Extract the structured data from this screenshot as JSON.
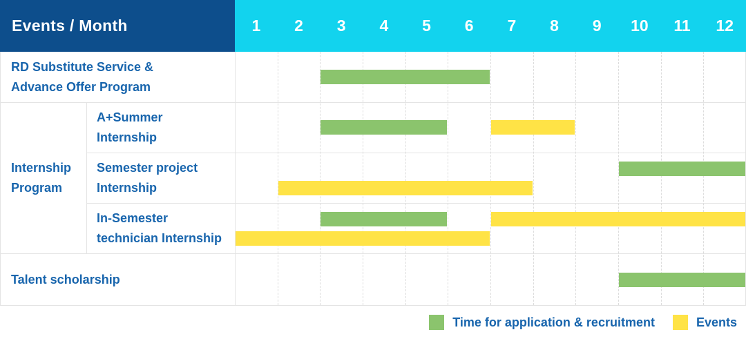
{
  "header": {
    "corner_label": "Events / Month",
    "months": [
      "1",
      "2",
      "3",
      "4",
      "5",
      "6",
      "7",
      "8",
      "9",
      "10",
      "11",
      "12"
    ]
  },
  "colors": {
    "header_bg": "#0d4e8c",
    "months_bg": "#12d3ee",
    "recruitment": "#8bc46d",
    "events": "#ffe346",
    "label_text": "#1865ad"
  },
  "legend": {
    "items": [
      {
        "key": "recruitment",
        "label": "Time for application & recruitment",
        "color": "#8bc46d"
      },
      {
        "key": "events",
        "label": "Events",
        "color": "#ffe346"
      }
    ]
  },
  "chart_data": {
    "type": "bar",
    "subtype": "gantt",
    "title": "Events / Month",
    "x_axis": {
      "label": "Month",
      "ticks": [
        1,
        2,
        3,
        4,
        5,
        6,
        7,
        8,
        9,
        10,
        11,
        12
      ],
      "range": [
        1,
        12
      ]
    },
    "grid": "dashed-vertical-month-lines",
    "legend_position": "bottom-right",
    "series_legend": {
      "recruitment": "Time for application & recruitment",
      "events": "Events"
    },
    "group": {
      "label": "Internship\nProgram",
      "member_rows": [
        "A+Summer Internship",
        "Semester project Internship",
        "In-Semester technician Internship"
      ]
    },
    "rows": [
      {
        "label": "RD Substitute Service &\nAdvance Offer Program",
        "in_group": false,
        "lines": [
          [
            {
              "series": "recruitment",
              "start_month": 3,
              "end_month": 6
            }
          ]
        ]
      },
      {
        "label": "A+Summer\nInternship",
        "in_group": true,
        "lines": [
          [
            {
              "series": "recruitment",
              "start_month": 3,
              "end_month": 5
            },
            {
              "series": "events",
              "start_month": 7,
              "end_month": 8
            }
          ]
        ]
      },
      {
        "label": "Semester project\nInternship",
        "in_group": true,
        "lines": [
          [
            {
              "series": "recruitment",
              "start_month": 10,
              "end_month": 12
            }
          ],
          [
            {
              "series": "events",
              "start_month": 2,
              "end_month": 7
            }
          ]
        ]
      },
      {
        "label": "In-Semester\ntechnician Internship",
        "in_group": true,
        "lines": [
          [
            {
              "series": "recruitment",
              "start_month": 3,
              "end_month": 5
            },
            {
              "series": "events",
              "start_month": 7,
              "end_month": 12
            }
          ],
          [
            {
              "series": "events",
              "start_month": 1,
              "end_month": 6
            }
          ]
        ]
      },
      {
        "label": "Talent scholarship",
        "in_group": false,
        "lines": [
          [
            {
              "series": "recruitment",
              "start_month": 10,
              "end_month": 12
            }
          ]
        ]
      }
    ]
  }
}
